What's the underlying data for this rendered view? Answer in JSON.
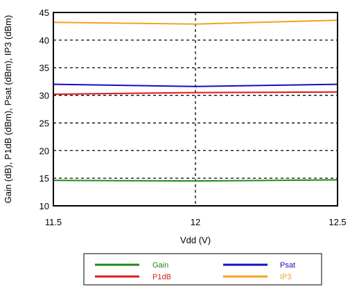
{
  "chart_data": {
    "type": "line",
    "title": "",
    "xlabel": "Vdd (V)",
    "ylabel": "Gain (dB), P1dB (dBm), Psat (dBm), IP3 (dBm)",
    "x": [
      11.5,
      12,
      12.5
    ],
    "x_ticks": [
      "11.5",
      "12",
      "12.5"
    ],
    "xlim": [
      11.5,
      12.5
    ],
    "ylim": [
      10,
      45
    ],
    "y_ticks": [
      "10",
      "15",
      "20",
      "25",
      "30",
      "35",
      "40",
      "45"
    ],
    "y_tick_values": [
      10,
      15,
      20,
      25,
      30,
      35,
      40,
      45
    ],
    "x_grid_values": [
      12
    ],
    "grid": true,
    "legend_position": "bottom",
    "series": [
      {
        "name": "Gain",
        "color": "#1a8a1a",
        "values": [
          14.6,
          14.5,
          14.7
        ]
      },
      {
        "name": "Psat",
        "color": "#1010c0",
        "values": [
          32.0,
          31.6,
          32.0
        ]
      },
      {
        "name": "P1dB",
        "color": "#e01818",
        "values": [
          30.2,
          30.5,
          30.6
        ]
      },
      {
        "name": "IP3",
        "color": "#f5a020",
        "values": [
          43.2,
          42.9,
          43.6
        ]
      }
    ]
  }
}
